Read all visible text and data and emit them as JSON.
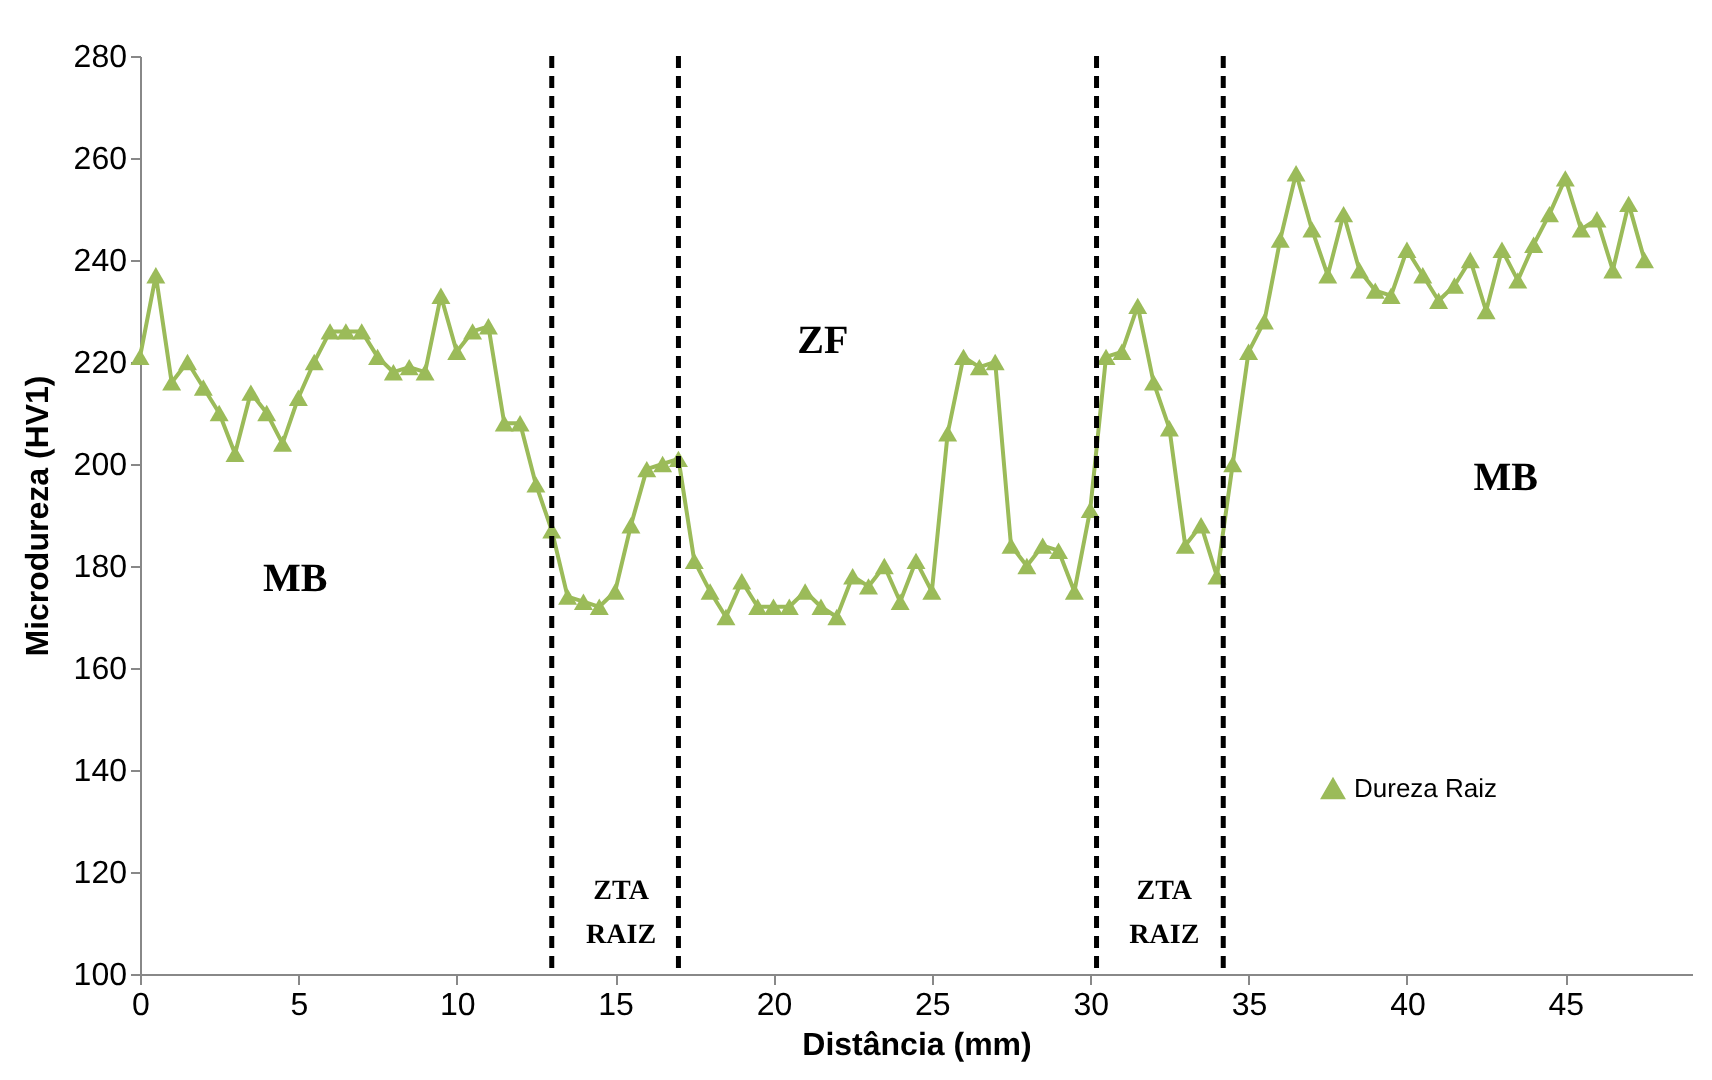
{
  "chart_data": {
    "type": "line",
    "xlabel": "Distância (mm)",
    "ylabel": "Microdureza (HV1)",
    "x": [
      0,
      0.5,
      1,
      1.5,
      2,
      2.5,
      3,
      3.5,
      4,
      4.5,
      5,
      5.5,
      6,
      6.5,
      7,
      7.5,
      8,
      8.5,
      9,
      9.5,
      10,
      10.5,
      11,
      11.5,
      12,
      12.5,
      13,
      13.5,
      14,
      14.5,
      15,
      15.5,
      16,
      16.5,
      17,
      17.5,
      18,
      18.5,
      19,
      19.5,
      20,
      20.5,
      21,
      21.5,
      22,
      22.5,
      23,
      23.5,
      24,
      24.5,
      25,
      25.5,
      26,
      26.5,
      27,
      27.5,
      28,
      28.5,
      29,
      29.5,
      30,
      30.5,
      31,
      31.5,
      32,
      32.5,
      33,
      33.5,
      34,
      34.5,
      35,
      35.5,
      36,
      36.5,
      37,
      37.5,
      38,
      38.5,
      39,
      39.5,
      40,
      40.5,
      41,
      41.5,
      42,
      42.5,
      43,
      43.5,
      44,
      44.5,
      45,
      45.5,
      46,
      46.5,
      47,
      47.5
    ],
    "series": [
      {
        "name": "Dureza Raiz",
        "color": "#9bbb59",
        "values": [
          221,
          237,
          216,
          220,
          215,
          210,
          202,
          214,
          210,
          204,
          213,
          220,
          226,
          226,
          226,
          221,
          218,
          219,
          218,
          233,
          222,
          226,
          227,
          208,
          208,
          196,
          187,
          174,
          173,
          172,
          175,
          188,
          199,
          200,
          201,
          181,
          175,
          170,
          177,
          172,
          172,
          172,
          175,
          172,
          170,
          178,
          176,
          180,
          173,
          181,
          175,
          206,
          221,
          219,
          220,
          184,
          180,
          184,
          183,
          175,
          191,
          221,
          222,
          231,
          216,
          207,
          184,
          188,
          178,
          200,
          222,
          228,
          244,
          257,
          246,
          237,
          249,
          238,
          234,
          233,
          242,
          237,
          232,
          235,
          240,
          230,
          242,
          236,
          243,
          249,
          256,
          246,
          248,
          238,
          251,
          240
        ]
      }
    ],
    "xlim": [
      0,
      49
    ],
    "xticks": [
      0,
      5,
      10,
      15,
      20,
      25,
      30,
      35,
      40,
      45
    ],
    "ylim": [
      100,
      280
    ],
    "yticks": [
      100,
      120,
      140,
      160,
      180,
      200,
      220,
      240,
      260,
      280
    ],
    "marker": "triangle",
    "line_style": "solid",
    "grid": false,
    "legend": "right",
    "ref_lines": [
      {
        "axis": "x",
        "value": 13,
        "color": "#000000",
        "line_style": "dashed"
      },
      {
        "axis": "x",
        "value": 17,
        "color": "#000000",
        "line_style": "dashed"
      },
      {
        "axis": "x",
        "value": 30.2,
        "color": "#000000",
        "line_style": "dashed"
      },
      {
        "axis": "x",
        "value": 34.2,
        "color": "#000000",
        "line_style": "dashed"
      }
    ],
    "annotations": [
      "MB",
      "ZF",
      "MB",
      "ZTA RAIZ",
      "ZTA RAIZ"
    ]
  }
}
